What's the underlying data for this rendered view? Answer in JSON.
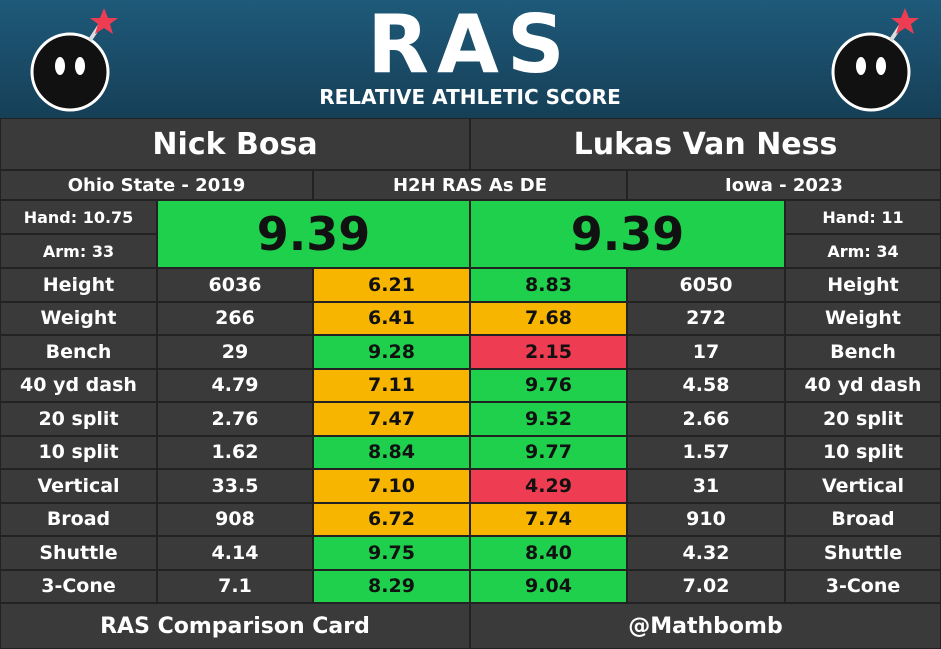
{
  "header": {
    "logo": "RAS",
    "tagline": "RELATIVE ATHLETIC SCORE"
  },
  "players": {
    "left": {
      "name": "Nick Bosa",
      "school": "Ohio State - 2019",
      "hand": "Hand: 10.75",
      "arm": "Arm: 33",
      "ras": "9.39",
      "ras_color": "#1fd04c"
    },
    "right": {
      "name": "Lukas Van Ness",
      "school": "Iowa - 2023",
      "hand": "Hand: 11",
      "arm": "Arm: 34",
      "ras": "9.39",
      "ras_color": "#1fd04c"
    }
  },
  "comparison": "H2H RAS As DE",
  "rows": [
    {
      "label": "Height",
      "left": "6036",
      "left_ras": "6.21",
      "left_color": "#f7b500",
      "right_ras": "8.83",
      "right_color": "#1fd04c",
      "right": "6050"
    },
    {
      "label": "Weight",
      "left": "266",
      "left_ras": "6.41",
      "left_color": "#f7b500",
      "right_ras": "7.68",
      "right_color": "#f7b500",
      "right": "272"
    },
    {
      "label": "Bench",
      "left": "29",
      "left_ras": "9.28",
      "left_color": "#1fd04c",
      "right_ras": "2.15",
      "right_color": "#ee3d52",
      "right": "17"
    },
    {
      "label": "40 yd dash",
      "left": "4.79",
      "left_ras": "7.11",
      "left_color": "#f7b500",
      "right_ras": "9.76",
      "right_color": "#1fd04c",
      "right": "4.58"
    },
    {
      "label": "20 split",
      "left": "2.76",
      "left_ras": "7.47",
      "left_color": "#f7b500",
      "right_ras": "9.52",
      "right_color": "#1fd04c",
      "right": "2.66"
    },
    {
      "label": "10 split",
      "left": "1.62",
      "left_ras": "8.84",
      "left_color": "#1fd04c",
      "right_ras": "9.77",
      "right_color": "#1fd04c",
      "right": "1.57"
    },
    {
      "label": "Vertical",
      "left": "33.5",
      "left_ras": "7.10",
      "left_color": "#f7b500",
      "right_ras": "4.29",
      "right_color": "#ee3d52",
      "right": "31"
    },
    {
      "label": "Broad",
      "left": "908",
      "left_ras": "6.72",
      "left_color": "#f7b500",
      "right_ras": "7.74",
      "right_color": "#f7b500",
      "right": "910"
    },
    {
      "label": "Shuttle",
      "left": "4.14",
      "left_ras": "9.75",
      "left_color": "#1fd04c",
      "right_ras": "8.40",
      "right_color": "#1fd04c",
      "right": "4.32"
    },
    {
      "label": "3-Cone",
      "left": "7.1",
      "left_ras": "8.29",
      "left_color": "#1fd04c",
      "right_ras": "9.04",
      "right_color": "#1fd04c",
      "right": "7.02"
    }
  ],
  "footer": {
    "left": "RAS Comparison Card",
    "right": "@Mathbomb"
  }
}
